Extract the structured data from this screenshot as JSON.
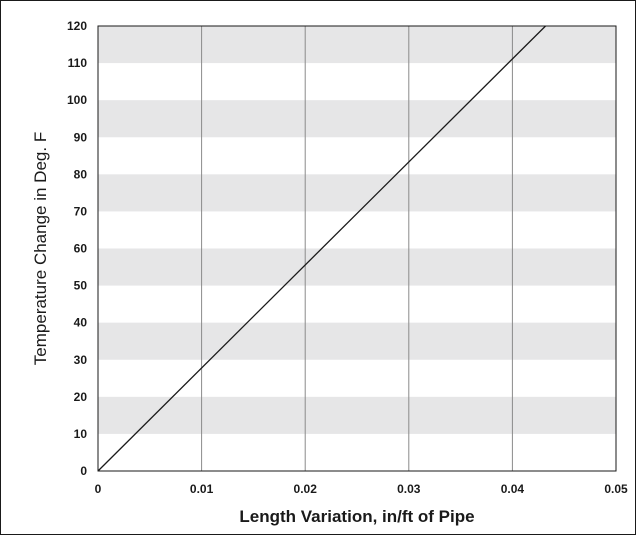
{
  "chart_data": {
    "type": "line",
    "xlabel": "Length Variation, in/ft of Pipe",
    "ylabel": "Temperature Change in Deg. F",
    "xlim": [
      0,
      0.05
    ],
    "ylim": [
      0,
      120
    ],
    "x_ticks": [
      "0",
      "0.01",
      "0.02",
      "0.03",
      "0.04",
      "0.05"
    ],
    "y_ticks": [
      "0",
      "10",
      "20",
      "30",
      "40",
      "50",
      "60",
      "70",
      "80",
      "90",
      "100",
      "110",
      "120"
    ],
    "x_tick_values": [
      0,
      0.01,
      0.02,
      0.03,
      0.04,
      0.05
    ],
    "y_tick_values": [
      0,
      10,
      20,
      30,
      40,
      50,
      60,
      70,
      80,
      90,
      100,
      110,
      120
    ],
    "grid": "vertical gridlines; alternating horizontal bands every 10 Deg. F",
    "band_color": "#e6e6e7",
    "line_color": "#1a1a1a",
    "grid_color": "#8a8a8a",
    "series": [
      {
        "x": [
          0,
          0.0432
        ],
        "y": [
          0,
          120
        ]
      }
    ]
  }
}
